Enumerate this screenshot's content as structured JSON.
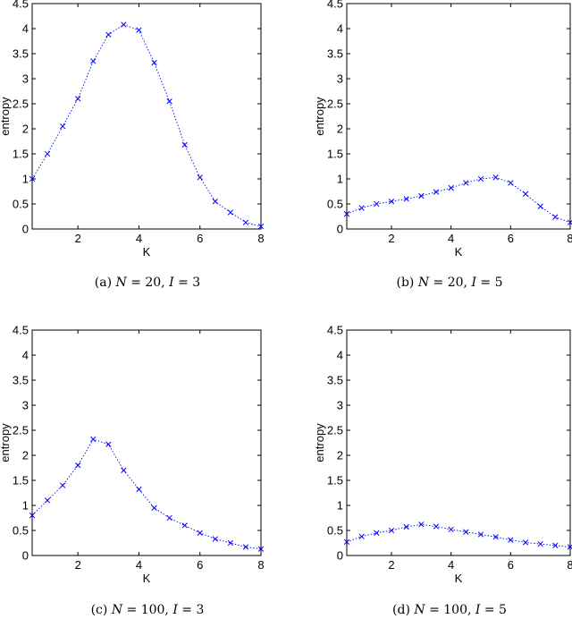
{
  "figure_captions": [
    {
      "letter": "(a)",
      "n_label": "N",
      "n_value": "20,",
      "i_label": "I",
      "i_value": "3"
    },
    {
      "letter": "(b)",
      "n_label": "N",
      "n_value": "20,",
      "i_label": "I",
      "i_value": "5"
    },
    {
      "letter": "(c)",
      "n_label": "N",
      "n_value": "100,",
      "i_label": "I",
      "i_value": "3"
    },
    {
      "letter": "(d)",
      "n_label": "N",
      "n_value": "100,",
      "i_label": "I",
      "i_value": "5"
    }
  ],
  "chart_data": [
    {
      "type": "line",
      "xlabel": "K",
      "ylabel": "entropy",
      "xlim": [
        0.5,
        8
      ],
      "ylim": [
        0,
        4.5
      ],
      "xticks": [
        "2",
        "4",
        "6",
        "8"
      ],
      "yticks": [
        "0",
        "0.5",
        "1",
        "1.5",
        "2",
        "2.5",
        "3",
        "3.5",
        "4",
        "4.5"
      ],
      "series": [
        {
          "x": [
            0.5,
            1,
            1.5,
            2,
            2.5,
            3,
            3.5,
            4,
            4.5,
            5,
            5.5,
            6,
            6.5,
            7,
            7.5,
            8
          ],
          "y": [
            1.0,
            1.5,
            2.05,
            2.6,
            3.35,
            3.88,
            4.08,
            3.97,
            3.32,
            2.55,
            1.68,
            1.03,
            0.55,
            0.33,
            0.13,
            0.05
          ]
        }
      ],
      "color": "#0000ff",
      "marker": "x",
      "line_style": "dotted"
    },
    {
      "type": "line",
      "xlabel": "K",
      "ylabel": "entropy",
      "xlim": [
        0.5,
        8
      ],
      "ylim": [
        0,
        4.5
      ],
      "xticks": [
        "2",
        "4",
        "6",
        "8"
      ],
      "yticks": [
        "0",
        "0.5",
        "1",
        "1.5",
        "2",
        "2.5",
        "3",
        "3.5",
        "4",
        "4.5"
      ],
      "series": [
        {
          "x": [
            0.5,
            1,
            1.5,
            2,
            2.5,
            3,
            3.5,
            4,
            4.5,
            5,
            5.5,
            6,
            6.5,
            7,
            7.5,
            8
          ],
          "y": [
            0.3,
            0.42,
            0.5,
            0.55,
            0.6,
            0.66,
            0.74,
            0.82,
            0.92,
            1.0,
            1.03,
            0.92,
            0.7,
            0.45,
            0.24,
            0.13
          ]
        }
      ],
      "color": "#0000ff",
      "marker": "x",
      "line_style": "dotted"
    },
    {
      "type": "line",
      "xlabel": "K",
      "ylabel": "entropy",
      "xlim": [
        0.5,
        8
      ],
      "ylim": [
        0,
        4.5
      ],
      "xticks": [
        "2",
        "4",
        "6",
        "8"
      ],
      "yticks": [
        "0",
        "0.5",
        "1",
        "1.5",
        "2",
        "2.5",
        "3",
        "3.5",
        "4",
        "4.5"
      ],
      "series": [
        {
          "x": [
            0.5,
            1,
            1.5,
            2,
            2.5,
            3,
            3.5,
            4,
            4.5,
            5,
            5.5,
            6,
            6.5,
            7,
            7.5,
            8
          ],
          "y": [
            0.8,
            1.1,
            1.4,
            1.8,
            2.32,
            2.22,
            1.7,
            1.32,
            0.95,
            0.75,
            0.6,
            0.45,
            0.33,
            0.25,
            0.17,
            0.13
          ]
        }
      ],
      "color": "#0000ff",
      "marker": "x",
      "line_style": "dotted"
    },
    {
      "type": "line",
      "xlabel": "K",
      "ylabel": "entropy",
      "xlim": [
        0.5,
        8
      ],
      "ylim": [
        0,
        4.5
      ],
      "xticks": [
        "2",
        "4",
        "6",
        "8"
      ],
      "yticks": [
        "0",
        "0.5",
        "1",
        "1.5",
        "2",
        "2.5",
        "3",
        "3.5",
        "4",
        "4.5"
      ],
      "series": [
        {
          "x": [
            0.5,
            1,
            1.5,
            2,
            2.5,
            3,
            3.5,
            4,
            4.5,
            5,
            5.5,
            6,
            6.5,
            7,
            7.5,
            8
          ],
          "y": [
            0.27,
            0.38,
            0.45,
            0.5,
            0.57,
            0.62,
            0.58,
            0.52,
            0.47,
            0.42,
            0.37,
            0.31,
            0.26,
            0.23,
            0.2,
            0.17
          ]
        }
      ],
      "color": "#0000ff",
      "marker": "x",
      "line_style": "dotted"
    }
  ]
}
